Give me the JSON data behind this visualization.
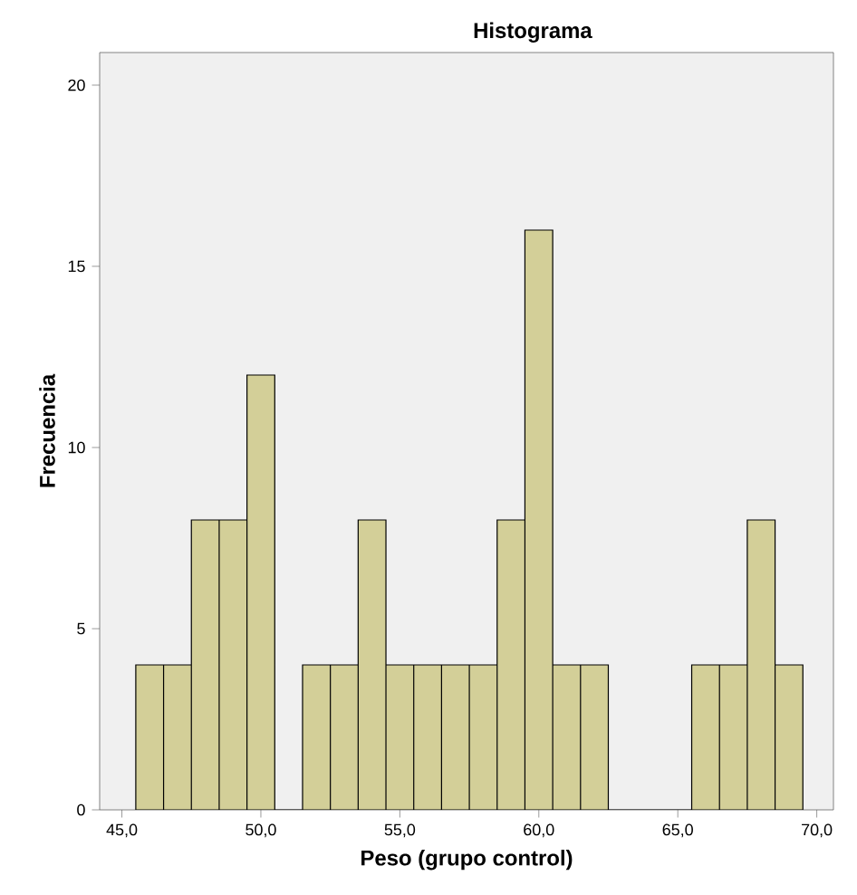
{
  "chart_data": {
    "type": "histogram",
    "title": "Histograma",
    "xlabel": "Peso (grupo control)",
    "ylabel": "Frecuencia",
    "bins": [
      45.5,
      46.5,
      47.5,
      48.5,
      49.5,
      50.5,
      51.5,
      52.5,
      53.5,
      54.5,
      55.5,
      56.5,
      57.5,
      58.5,
      59.5,
      60.5,
      61.5,
      62.5,
      63.5,
      64.5,
      65.5,
      66.5,
      67.5,
      68.5,
      69.5
    ],
    "values": [
      4,
      4,
      8,
      8,
      12,
      0,
      4,
      4,
      8,
      4,
      4,
      4,
      4,
      8,
      16,
      4,
      4,
      0,
      0,
      0,
      4,
      4,
      8,
      4
    ],
    "color": "#d3cf98",
    "xlim": [
      44.2,
      70.6
    ],
    "ylim": [
      0,
      20.9
    ],
    "xticks": [
      {
        "value": 45,
        "label": "45,0"
      },
      {
        "value": 50,
        "label": "50,0"
      },
      {
        "value": 55,
        "label": "55,0"
      },
      {
        "value": 60,
        "label": "60,0"
      },
      {
        "value": 65,
        "label": "65,0"
      },
      {
        "value": 70,
        "label": "70,0"
      }
    ],
    "yticks": [
      0,
      5,
      10,
      15,
      20
    ],
    "grid": false
  }
}
